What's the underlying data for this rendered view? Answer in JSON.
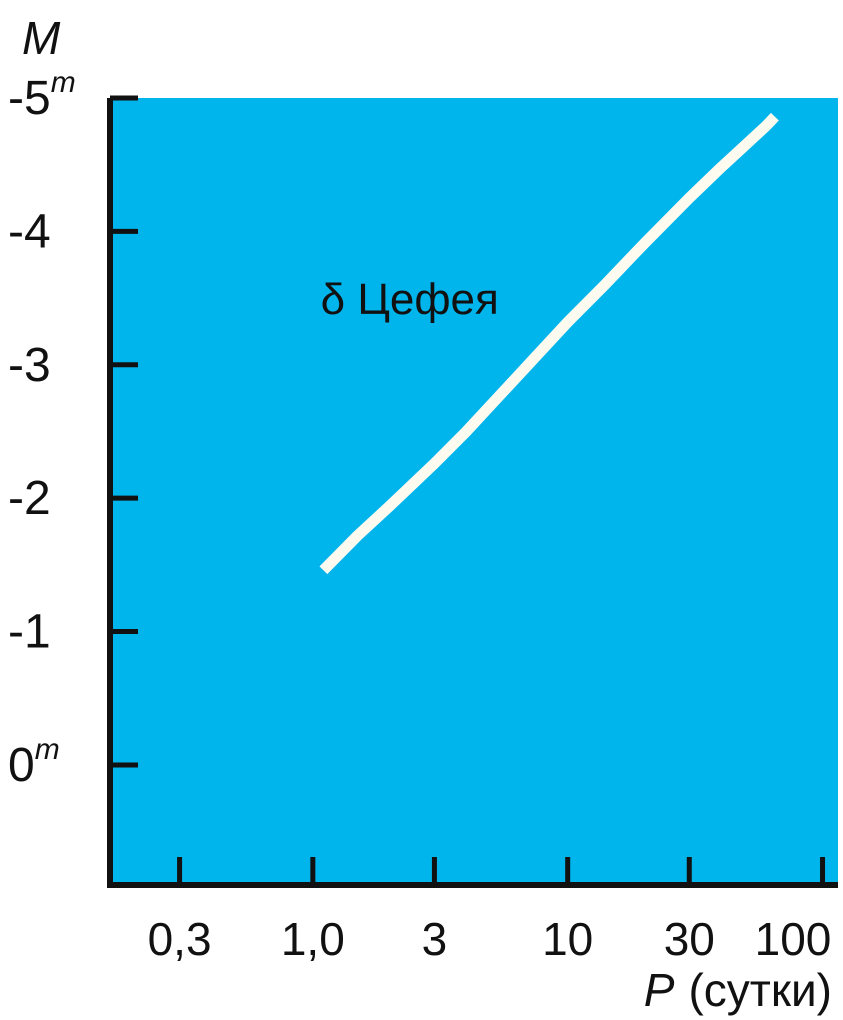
{
  "chart_data": {
    "type": "line",
    "ylabel": "M",
    "xlabel_var": "P",
    "xlabel_unit": "(сутки)",
    "x_scale": "log",
    "y_inverted": true,
    "grid": false,
    "background_color": "#00b4ec",
    "line_color": "#fdfbf0",
    "xlim": [
      0.16,
      115
    ],
    "ylim": [
      0.9,
      -5
    ],
    "x_ticks": [
      {
        "value": 0.3,
        "label": "0,3"
      },
      {
        "value": 1.0,
        "label": "1,0"
      },
      {
        "value": 3,
        "label": "3"
      },
      {
        "value": 10,
        "label": "10"
      },
      {
        "value": 30,
        "label": "30"
      },
      {
        "value": 100,
        "label": "100"
      }
    ],
    "y_ticks": [
      {
        "value": -5,
        "label": "-5",
        "sup": "m"
      },
      {
        "value": -4,
        "label": "-4",
        "sup": ""
      },
      {
        "value": -3,
        "label": "-3",
        "sup": ""
      },
      {
        "value": -2,
        "label": "-2",
        "sup": ""
      },
      {
        "value": -1,
        "label": "-1",
        "sup": ""
      },
      {
        "value": 0,
        "label": "0",
        "sup": "m"
      }
    ],
    "series": [
      {
        "x": [
          1.1,
          1.5,
          2,
          3,
          4,
          5,
          7,
          10,
          14,
          20,
          30,
          40,
          50,
          60,
          65
        ],
        "y": [
          -1.46,
          -1.72,
          -1.94,
          -2.26,
          -2.5,
          -2.7,
          -3.0,
          -3.32,
          -3.6,
          -3.91,
          -4.25,
          -4.48,
          -4.65,
          -4.79,
          -4.86
        ]
      }
    ],
    "annotations": [
      {
        "text": "δ Цефея",
        "x": 2.4,
        "y": -3.5
      }
    ]
  }
}
